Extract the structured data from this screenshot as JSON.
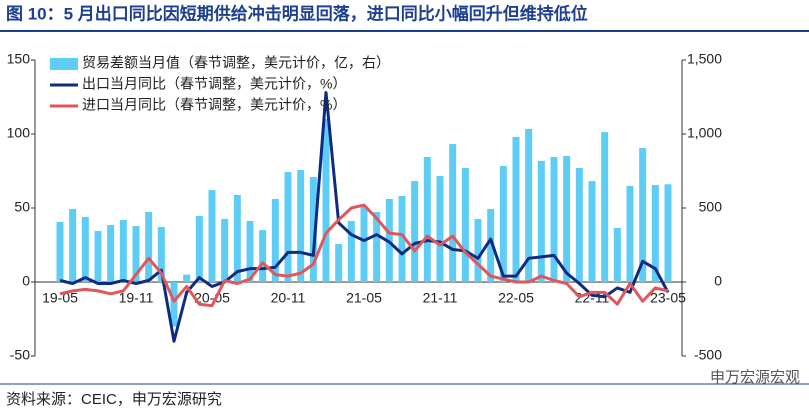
{
  "chart_data": {
    "type": "bar-line",
    "title": "图 10：5 月出口同比因短期供给冲击明显回落，进口同比小幅回升但维持低位",
    "source": "资料来源：CEIC，申万宏源研究",
    "watermark": "申万宏源宏观",
    "categories": [
      "19-05",
      null,
      null,
      null,
      null,
      null,
      "19-11",
      null,
      null,
      null,
      null,
      null,
      "20-05",
      null,
      null,
      null,
      null,
      null,
      "20-11",
      null,
      null,
      null,
      null,
      null,
      "21-05",
      null,
      null,
      null,
      null,
      null,
      "21-11",
      null,
      null,
      null,
      null,
      null,
      "22-05",
      null,
      null,
      null,
      null,
      null,
      "22-11",
      null,
      null,
      null,
      null,
      null,
      "23-05"
    ],
    "series": [
      {
        "name": "贸易差额当月值（春节调整，美元计价，亿，右）",
        "kind": "bar",
        "axis": "y2",
        "color": "#5dcdf6",
        "values": [
          405,
          493,
          439,
          345,
          385,
          419,
          378,
          473,
          372,
          -300,
          50,
          446,
          622,
          426,
          588,
          412,
          351,
          561,
          743,
          757,
          709,
          1101,
          257,
          412,
          507,
          473,
          561,
          581,
          682,
          845,
          716,
          932,
          770,
          426,
          493,
          784,
          980,
          1034,
          818,
          845,
          851,
          770,
          682,
          1013,
          365,
          649,
          905,
          655,
          660
        ]
      },
      {
        "name": "出口当月同比（春节调整，美元计价，%）",
        "kind": "line",
        "color": "#0d2b82",
        "values": [
          1,
          -1,
          3,
          -1,
          -1,
          1,
          -1,
          1,
          8,
          -40,
          -7,
          3,
          -3,
          0,
          7,
          9,
          9,
          10,
          20,
          20,
          18,
          128,
          40,
          32,
          28,
          32,
          27,
          19,
          26,
          28,
          27,
          22,
          21,
          16,
          29,
          4,
          4,
          16,
          17,
          18,
          6,
          -1,
          -9,
          -10,
          -4,
          -7,
          14,
          9,
          -7
        ]
      },
      {
        "name": "进口当月同比（春节调整，美元计价，%）",
        "kind": "line",
        "color": "#e0575b",
        "values": [
          -8,
          -6,
          -5,
          -6,
          -8,
          -6,
          5,
          16,
          6,
          -13,
          -3,
          -15,
          -16,
          1,
          -1,
          2,
          13,
          5,
          4,
          6,
          12,
          33,
          42,
          50,
          52,
          43,
          33,
          32,
          21,
          31,
          25,
          31,
          20,
          12,
          4,
          2,
          0,
          0,
          4,
          1,
          -1,
          -10,
          -7,
          -7,
          -15,
          -1,
          -13,
          -4,
          -6
        ]
      }
    ],
    "ylim": [
      -50,
      150
    ],
    "yticks": [
      -50,
      0,
      50,
      100,
      150
    ],
    "y2lim": [
      -500,
      1500
    ],
    "y2ticks": [
      {
        "value": -500,
        "label": "-500"
      },
      0,
      500,
      {
        "value": 1000,
        "label": "1,000"
      },
      {
        "value": 1500,
        "label": "1,500"
      }
    ],
    "legend": "upper left"
  }
}
